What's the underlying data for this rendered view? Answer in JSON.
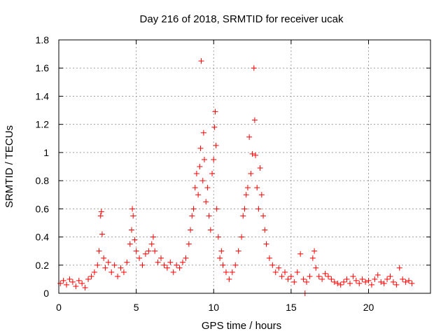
{
  "chart_data": {
    "type": "scatter",
    "title": "Day 216 of 2018, SRMTID for receiver ucak",
    "xlabel": "GPS time / hours",
    "ylabel": "SRMTID / TECUs",
    "xlim": [
      0,
      24
    ],
    "ylim": [
      0,
      1.8
    ],
    "x_ticks": [
      0,
      5,
      10,
      15,
      20
    ],
    "y_ticks": [
      0,
      0.2,
      0.4,
      0.6,
      0.8,
      1,
      1.2,
      1.4,
      1.6,
      1.8
    ],
    "x_tick_labels": [
      "0",
      "5",
      "10",
      "15",
      "20"
    ],
    "y_tick_labels": [
      "0",
      "0.2",
      "0.4",
      "0.6",
      "0.8",
      "1",
      "1.2",
      "1.4",
      "1.6",
      "1.8"
    ],
    "grid": true,
    "marker": "+",
    "color": "#ff0000",
    "series": [
      {
        "name": "SRMTID",
        "points": [
          [
            0.1,
            0.07
          ],
          [
            0.3,
            0.09
          ],
          [
            0.5,
            0.06
          ],
          [
            0.7,
            0.1
          ],
          [
            0.9,
            0.08
          ],
          [
            1.1,
            0.05
          ],
          [
            1.3,
            0.09
          ],
          [
            1.5,
            0.07
          ],
          [
            1.7,
            0.04
          ],
          [
            1.9,
            0.1
          ],
          [
            2.1,
            0.12
          ],
          [
            2.3,
            0.15
          ],
          [
            2.5,
            0.2
          ],
          [
            2.6,
            0.3
          ],
          [
            2.7,
            0.55
          ],
          [
            2.75,
            0.58
          ],
          [
            2.8,
            0.42
          ],
          [
            2.9,
            0.25
          ],
          [
            3.0,
            0.18
          ],
          [
            3.2,
            0.22
          ],
          [
            3.4,
            0.15
          ],
          [
            3.6,
            0.2
          ],
          [
            3.8,
            0.12
          ],
          [
            4.0,
            0.18
          ],
          [
            4.2,
            0.15
          ],
          [
            4.4,
            0.22
          ],
          [
            4.6,
            0.35
          ],
          [
            4.7,
            0.45
          ],
          [
            4.75,
            0.6
          ],
          [
            4.8,
            0.55
          ],
          [
            4.9,
            0.38
          ],
          [
            5.0,
            0.3
          ],
          [
            5.2,
            0.25
          ],
          [
            5.4,
            0.2
          ],
          [
            5.6,
            0.28
          ],
          [
            5.8,
            0.3
          ],
          [
            6.0,
            0.35
          ],
          [
            6.1,
            0.4
          ],
          [
            6.2,
            0.3
          ],
          [
            6.4,
            0.22
          ],
          [
            6.6,
            0.25
          ],
          [
            6.8,
            0.2
          ],
          [
            7.0,
            0.18
          ],
          [
            7.2,
            0.22
          ],
          [
            7.4,
            0.15
          ],
          [
            7.6,
            0.2
          ],
          [
            7.8,
            0.18
          ],
          [
            8.0,
            0.22
          ],
          [
            8.2,
            0.25
          ],
          [
            8.4,
            0.35
          ],
          [
            8.5,
            0.45
          ],
          [
            8.6,
            0.55
          ],
          [
            8.7,
            0.6
          ],
          [
            8.8,
            0.75
          ],
          [
            8.9,
            0.85
          ],
          [
            9.0,
            0.7
          ],
          [
            9.1,
            0.9
          ],
          [
            9.15,
            1.03
          ],
          [
            9.2,
            1.65
          ],
          [
            9.3,
            0.8
          ],
          [
            9.35,
            1.14
          ],
          [
            9.4,
            0.95
          ],
          [
            9.5,
            0.65
          ],
          [
            9.6,
            0.75
          ],
          [
            9.7,
            0.55
          ],
          [
            9.8,
            0.45
          ],
          [
            9.9,
            0.85
          ],
          [
            10.0,
            0.95
          ],
          [
            10.05,
            1.18
          ],
          [
            10.1,
            1.29
          ],
          [
            10.15,
            1.05
          ],
          [
            10.2,
            0.6
          ],
          [
            10.3,
            0.4
          ],
          [
            10.4,
            0.25
          ],
          [
            10.5,
            0.3
          ],
          [
            10.6,
            0.2
          ],
          [
            10.8,
            0.15
          ],
          [
            11.0,
            0.1
          ],
          [
            11.2,
            0.15
          ],
          [
            11.4,
            0.2
          ],
          [
            11.6,
            0.3
          ],
          [
            11.8,
            0.4
          ],
          [
            11.9,
            0.55
          ],
          [
            12.0,
            0.6
          ],
          [
            12.1,
            0.7
          ],
          [
            12.2,
            0.75
          ],
          [
            12.3,
            1.11
          ],
          [
            12.4,
            0.85
          ],
          [
            12.5,
            0.99
          ],
          [
            12.6,
            1.6
          ],
          [
            12.65,
            1.23
          ],
          [
            12.7,
            0.98
          ],
          [
            12.8,
            0.75
          ],
          [
            12.9,
            0.6
          ],
          [
            13.0,
            0.89
          ],
          [
            13.1,
            0.7
          ],
          [
            13.2,
            0.55
          ],
          [
            13.3,
            0.45
          ],
          [
            13.4,
            0.35
          ],
          [
            13.6,
            0.25
          ],
          [
            13.8,
            0.2
          ],
          [
            14.0,
            0.15
          ],
          [
            14.2,
            0.18
          ],
          [
            14.4,
            0.12
          ],
          [
            14.6,
            0.15
          ],
          [
            14.8,
            0.1
          ],
          [
            15.0,
            0.12
          ],
          [
            15.2,
            0.08
          ],
          [
            15.4,
            0.15
          ],
          [
            15.6,
            0.28
          ],
          [
            15.8,
            0.1
          ],
          [
            15.9,
            0.0
          ],
          [
            16.0,
            0.08
          ],
          [
            16.2,
            0.12
          ],
          [
            16.4,
            0.25
          ],
          [
            16.5,
            0.3
          ],
          [
            16.6,
            0.18
          ],
          [
            16.8,
            0.12
          ],
          [
            17.0,
            0.1
          ],
          [
            17.2,
            0.14
          ],
          [
            17.4,
            0.12
          ],
          [
            17.6,
            0.1
          ],
          [
            17.8,
            0.08
          ],
          [
            18.0,
            0.07
          ],
          [
            18.2,
            0.06
          ],
          [
            18.4,
            0.08
          ],
          [
            18.6,
            0.1
          ],
          [
            18.8,
            0.07
          ],
          [
            19.0,
            0.12
          ],
          [
            19.2,
            0.09
          ],
          [
            19.4,
            0.07
          ],
          [
            19.6,
            0.1
          ],
          [
            19.8,
            0.08
          ],
          [
            20.0,
            0.09
          ],
          [
            20.2,
            0.06
          ],
          [
            20.4,
            0.1
          ],
          [
            20.6,
            0.13
          ],
          [
            20.8,
            0.08
          ],
          [
            21.0,
            0.07
          ],
          [
            21.2,
            0.1
          ],
          [
            21.4,
            0.12
          ],
          [
            21.6,
            0.08
          ],
          [
            21.8,
            0.06
          ],
          [
            22.0,
            0.18
          ],
          [
            22.2,
            0.1
          ],
          [
            22.4,
            0.08
          ],
          [
            22.6,
            0.09
          ],
          [
            22.8,
            0.07
          ]
        ]
      }
    ]
  }
}
